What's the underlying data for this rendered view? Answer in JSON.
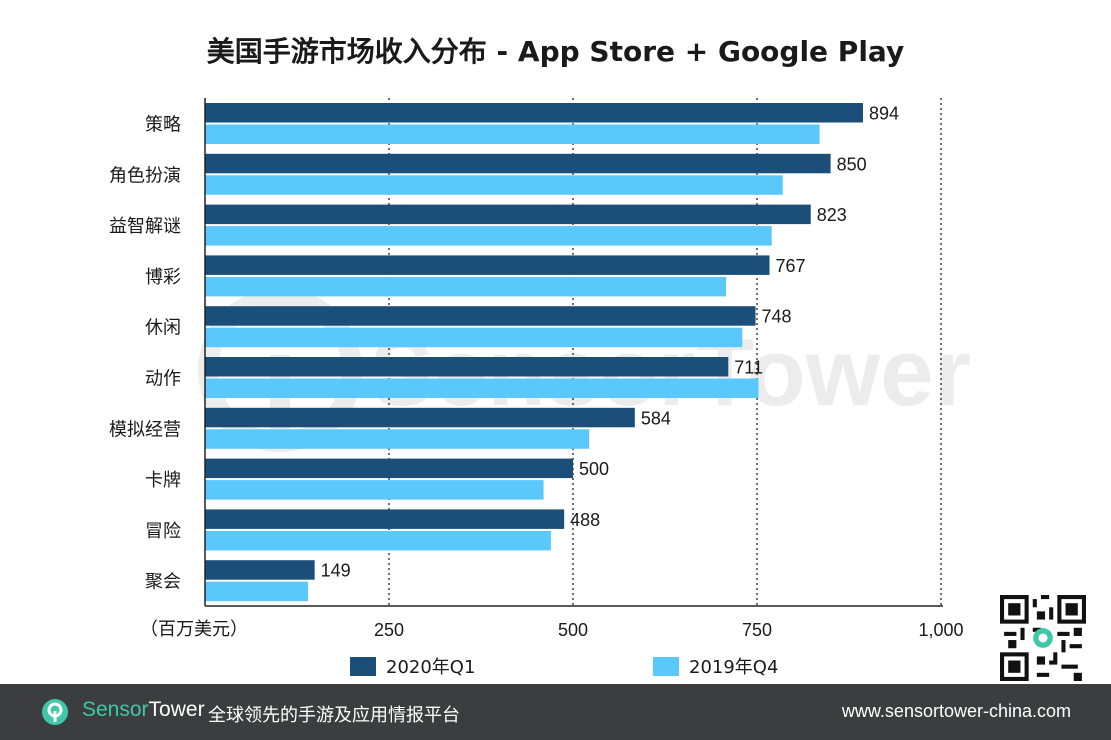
{
  "chart_data": {
    "type": "bar",
    "orientation": "horizontal",
    "title": "美国手游市场收入分布 - App Store + Google Play",
    "unit_label": "（百万美元）",
    "categories": [
      "策略",
      "角色扮演",
      "益智解谜",
      "博彩",
      "休闲",
      "动作",
      "模拟经营",
      "卡牌",
      "冒险",
      "聚会"
    ],
    "series": [
      {
        "name": "2020年Q1",
        "color": "#1b4f7a",
        "values": [
          894,
          850,
          823,
          767,
          748,
          711,
          584,
          500,
          488,
          149
        ],
        "labeled": true
      },
      {
        "name": "2019年Q4",
        "color": "#5ac8fa",
        "values": [
          835,
          785,
          770,
          708,
          730,
          752,
          522,
          460,
          470,
          140
        ],
        "labeled": false
      }
    ],
    "xlim": [
      0,
      1000
    ],
    "xticks": [
      250,
      500,
      750,
      1000
    ],
    "xtick_labels": [
      "250",
      "500",
      "750",
      "1,000"
    ],
    "grid": "dotted vertical",
    "legend_position": "bottom",
    "watermark": "SensorTower"
  },
  "footer": {
    "brand_part1": "Sensor",
    "brand_part2": "Tower",
    "tagline": "全球领先的手游及应用情报平台",
    "url": "www.sensortower-china.com"
  },
  "colors": {
    "footer_bg": "#3b3d3f",
    "brand_accent": "#3fc7a8"
  }
}
